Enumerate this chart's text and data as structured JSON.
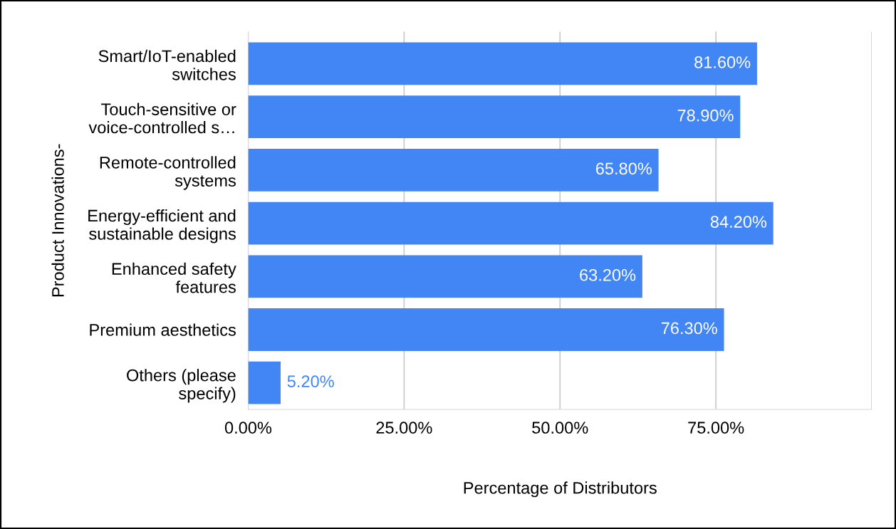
{
  "chart_data": {
    "type": "bar",
    "orientation": "horizontal",
    "xlabel": "Percentage of Distributors",
    "ylabel": "Product Innovations-",
    "categories": [
      "Smart/IoT-enabled\nswitches",
      "Touch-sensitive or\nvoice-controlled s…",
      "Remote-controlled\nsystems",
      "Energy-efficient and\nsustainable designs",
      "Enhanced safety\nfeatures",
      "Premium aesthetics",
      "Others (please\nspecify)"
    ],
    "values": [
      81.6,
      78.9,
      65.8,
      84.2,
      63.2,
      76.3,
      5.2
    ],
    "value_labels": [
      "81.60%",
      "78.90%",
      "65.80%",
      "84.20%",
      "63.20%",
      "76.30%",
      "5.20%"
    ],
    "color": "#4285f4",
    "xlim": [
      0,
      100
    ],
    "xticks": [
      {
        "value": 0,
        "label": "0.00%"
      },
      {
        "value": 25,
        "label": "25.00%"
      },
      {
        "value": 50,
        "label": "50.00%"
      },
      {
        "value": 75,
        "label": "75.00%"
      },
      {
        "value": 100,
        "label": null
      }
    ],
    "grid": "x"
  }
}
